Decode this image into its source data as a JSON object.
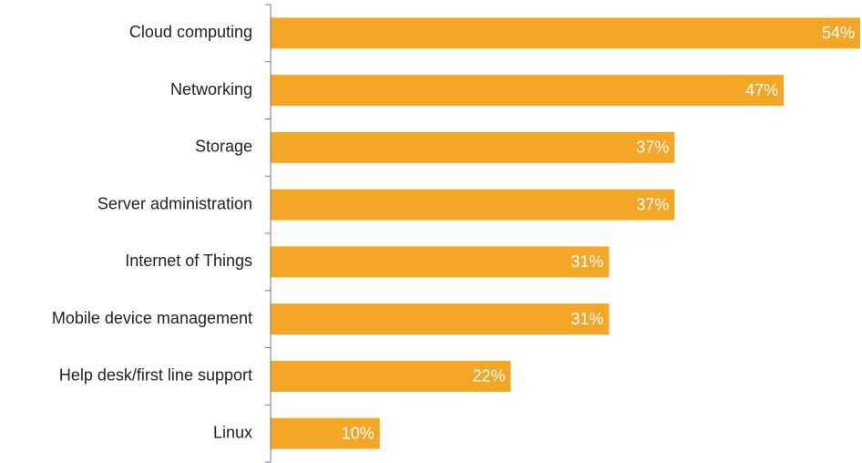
{
  "chart_data": {
    "type": "bar",
    "orientation": "horizontal",
    "categories": [
      "Cloud computing",
      "Networking",
      "Storage",
      "Server administration",
      "Internet of Things",
      "Mobile device management",
      "Help desk/first line support",
      "Linux"
    ],
    "values": [
      54,
      47,
      37,
      37,
      31,
      31,
      22,
      10
    ],
    "value_labels": [
      "54%",
      "47%",
      "37%",
      "37%",
      "31%",
      "31%",
      "22%",
      "10%"
    ],
    "color": "#f4a727",
    "xlim": [
      0,
      54
    ]
  }
}
